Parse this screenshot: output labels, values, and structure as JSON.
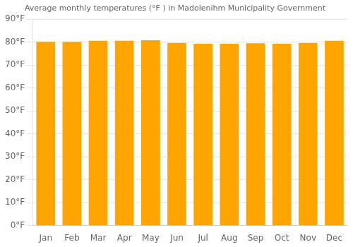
{
  "chart_data": {
    "type": "bar",
    "title": "Average monthly temperatures (°F ) in Madolenihm Municipality Government",
    "categories": [
      "Jan",
      "Feb",
      "Mar",
      "Apr",
      "May",
      "Jun",
      "Jul",
      "Aug",
      "Sep",
      "Oct",
      "Nov",
      "Dec"
    ],
    "values": [
      80.1,
      80.1,
      80.6,
      80.6,
      80.8,
      79.7,
      79.3,
      79.3,
      79.5,
      79.3,
      79.7,
      80.6
    ],
    "color": "#FFA500",
    "ylim": [
      0,
      90
    ],
    "yticks": [
      {
        "value": 0,
        "label": "0°F"
      },
      {
        "value": 10,
        "label": "10°F"
      },
      {
        "value": 20,
        "label": "20°F"
      },
      {
        "value": 30,
        "label": "30°F"
      },
      {
        "value": 40,
        "label": "40°F"
      },
      {
        "value": 50,
        "label": "50°F"
      },
      {
        "value": 60,
        "label": "60°F"
      },
      {
        "value": 70,
        "label": "70°F"
      },
      {
        "value": 80,
        "label": "80°F"
      },
      {
        "value": 90,
        "label": "90°F"
      }
    ],
    "grid": true
  }
}
